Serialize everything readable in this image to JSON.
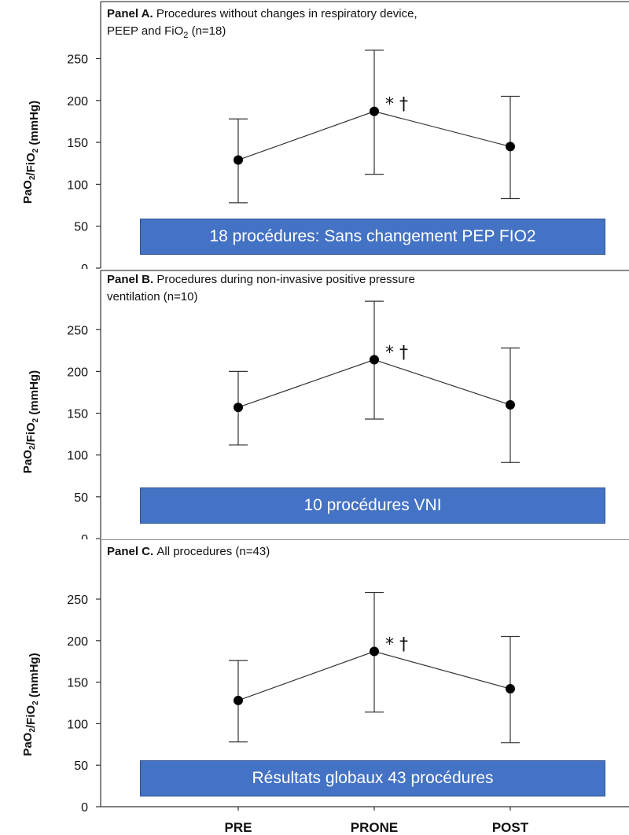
{
  "chart_data": [
    {
      "type": "scatter",
      "title_bold": "Panel A.",
      "title_lines": [
        "Procedures without changes in respiratory device,",
        "PEEP and FiO"
      ],
      "title_sub": "2",
      "title_tail": " (n=18)",
      "ylabel": "PaO2/FiO2 (mmHg)",
      "ylim": [
        0,
        270
      ],
      "yticks": [
        0,
        50,
        100,
        150,
        200,
        250
      ],
      "categories": [
        "PRE",
        "PRONE",
        "POST"
      ],
      "series": [
        {
          "mean": [
            129,
            187,
            145
          ],
          "lower": [
            78,
            112,
            83
          ],
          "upper": [
            178,
            260,
            205
          ]
        }
      ],
      "annotation": {
        "text": "* †",
        "category": "PRONE"
      },
      "banner": "18 procédures: Sans changement PEP FIO2"
    },
    {
      "type": "scatter",
      "title_bold": "Panel B.",
      "title_lines": [
        "Procedures during non-invasive positive pressure",
        "ventilation (n=10)"
      ],
      "title_sub": "",
      "title_tail": "",
      "ylabel": "PaO2/FiO2 (mmHg)",
      "ylim": [
        0,
        290
      ],
      "yticks": [
        0,
        50,
        100,
        150,
        200,
        250
      ],
      "categories": [
        "PRE",
        "PRONE",
        "POST"
      ],
      "series": [
        {
          "mean": [
            157,
            214,
            160
          ],
          "lower": [
            112,
            143,
            91
          ],
          "upper": [
            200,
            284,
            228
          ]
        }
      ],
      "annotation": {
        "text": "* †",
        "category": "PRONE"
      },
      "banner": "10 procédures VNI"
    },
    {
      "type": "scatter",
      "title_bold": "Panel C.",
      "title_lines": [
        "All procedures (n=43)"
      ],
      "title_sub": "",
      "title_tail": "",
      "ylabel": "PaO2/FiO2 (mmHg)",
      "ylim": [
        0,
        300
      ],
      "yticks": [
        0,
        50,
        100,
        150,
        200,
        250
      ],
      "categories": [
        "PRE",
        "PRONE",
        "POST"
      ],
      "series": [
        {
          "mean": [
            128,
            187,
            142
          ],
          "lower": [
            78,
            114,
            77
          ],
          "upper": [
            176,
            258,
            205
          ]
        }
      ],
      "annotation": {
        "text": "* †",
        "category": "PRONE"
      },
      "banner": "Résultats globaux 43 procédures"
    }
  ]
}
